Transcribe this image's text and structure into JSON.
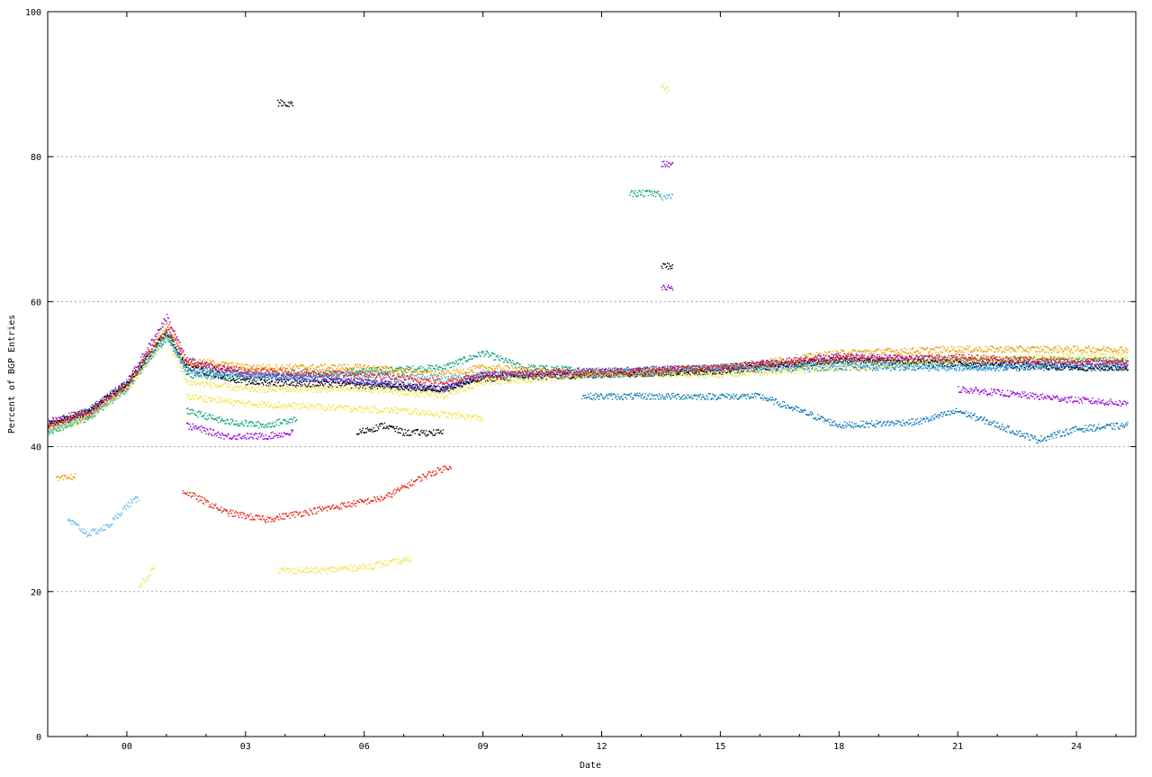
{
  "chart_data": {
    "type": "scatter",
    "title": "",
    "xlabel": "Date",
    "ylabel": "Percent of BGP Entries",
    "xlim": [
      -2.0,
      25.5
    ],
    "ylim": [
      0,
      100
    ],
    "x_ticks": [
      {
        "value": 0,
        "label": "00"
      },
      {
        "value": 3,
        "label": "03"
      },
      {
        "value": 6,
        "label": "06"
      },
      {
        "value": 9,
        "label": "09"
      },
      {
        "value": 12,
        "label": "12"
      },
      {
        "value": 15,
        "label": "15"
      },
      {
        "value": 18,
        "label": "18"
      },
      {
        "value": 21,
        "label": "21"
      },
      {
        "value": 24,
        "label": "24"
      }
    ],
    "y_ticks": [
      0,
      20,
      40,
      60,
      80,
      100
    ],
    "y_grid": true,
    "x_grid": false,
    "series": [
      {
        "color": "#009e73",
        "points": [
          [
            -2,
            42
          ],
          [
            -1,
            44
          ],
          [
            0,
            48
          ],
          [
            1,
            56
          ],
          [
            1.5,
            50
          ],
          [
            3,
            49.5
          ],
          [
            4.5,
            50
          ],
          [
            6,
            50.5
          ],
          [
            8,
            51
          ],
          [
            9,
            53
          ],
          [
            10,
            51
          ],
          [
            12,
            50.5
          ],
          [
            15,
            51
          ],
          [
            18,
            52
          ],
          [
            21,
            52
          ],
          [
            24,
            52
          ],
          [
            25.3,
            52
          ]
        ]
      },
      {
        "color": "#0072b2",
        "points": [
          [
            -2,
            43
          ],
          [
            -1,
            45
          ],
          [
            0,
            49
          ],
          [
            1,
            55
          ],
          [
            1.5,
            51
          ],
          [
            3,
            50
          ],
          [
            6,
            49
          ],
          [
            8,
            48
          ],
          [
            9,
            50
          ],
          [
            12,
            50
          ],
          [
            15,
            50.5
          ],
          [
            18,
            51
          ],
          [
            21,
            51
          ],
          [
            24,
            51
          ],
          [
            25.3,
            51
          ]
        ]
      },
      {
        "color": "#e69f00",
        "points": [
          [
            -2,
            42.5
          ],
          [
            -1,
            44.5
          ],
          [
            0,
            48.5
          ],
          [
            1,
            57
          ],
          [
            1.5,
            52
          ],
          [
            3,
            51
          ],
          [
            6,
            51
          ],
          [
            8,
            50
          ],
          [
            9,
            51
          ],
          [
            12,
            50
          ],
          [
            15,
            51
          ],
          [
            18,
            53
          ],
          [
            21,
            53.5
          ],
          [
            24,
            53.5
          ],
          [
            25.3,
            53.5
          ]
        ]
      },
      {
        "color": "#9400d3",
        "points": [
          [
            -2,
            43.5
          ],
          [
            -1,
            45
          ],
          [
            0,
            49
          ],
          [
            1,
            58
          ],
          [
            1.5,
            52
          ],
          [
            3,
            50
          ],
          [
            6,
            49
          ],
          [
            8,
            48
          ],
          [
            9,
            50
          ],
          [
            12,
            50.5
          ],
          [
            15,
            51
          ],
          [
            18,
            52.5
          ],
          [
            21,
            52
          ],
          [
            24,
            51.5
          ],
          [
            25.3,
            51.5
          ]
        ]
      },
      {
        "color": "#000000",
        "points": [
          [
            -2,
            43
          ],
          [
            -1,
            44.8
          ],
          [
            0,
            48.8
          ],
          [
            1,
            56
          ],
          [
            1.5,
            51
          ],
          [
            3,
            49
          ],
          [
            6,
            48.5
          ],
          [
            8,
            48
          ],
          [
            9,
            49.5
          ],
          [
            12,
            50
          ],
          [
            15,
            50.5
          ],
          [
            18,
            52
          ],
          [
            21,
            51.5
          ],
          [
            24,
            51
          ],
          [
            25.3,
            51
          ]
        ]
      },
      {
        "color": "#f0e442",
        "points": [
          [
            -2,
            42
          ],
          [
            -1,
            44
          ],
          [
            0,
            48
          ],
          [
            1,
            55
          ],
          [
            1.5,
            49
          ],
          [
            3,
            48
          ],
          [
            6,
            48
          ],
          [
            8,
            47
          ],
          [
            9,
            49
          ],
          [
            12,
            50
          ],
          [
            15,
            50
          ],
          [
            18,
            51
          ],
          [
            21,
            52
          ],
          [
            24,
            52.5
          ],
          [
            25.3,
            52.5
          ]
        ]
      },
      {
        "color": "#56b4e9",
        "points": [
          [
            -2,
            42.2
          ],
          [
            -1,
            44.2
          ],
          [
            0,
            48.2
          ],
          [
            1,
            55.5
          ],
          [
            1.5,
            50.5
          ],
          [
            3,
            50
          ],
          [
            6,
            50
          ],
          [
            8,
            49.5
          ],
          [
            9,
            50
          ],
          [
            12,
            50
          ],
          [
            15,
            51
          ],
          [
            18,
            51.5
          ],
          [
            21,
            51
          ],
          [
            24,
            51.5
          ],
          [
            25.3,
            51.5
          ]
        ]
      },
      {
        "color": "#e51e10",
        "points": [
          [
            -2,
            43.2
          ],
          [
            -1,
            44.6
          ],
          [
            0,
            48.6
          ],
          [
            1,
            56.5
          ],
          [
            1.5,
            51.5
          ],
          [
            3,
            50.5
          ],
          [
            6,
            50
          ],
          [
            8,
            49
          ],
          [
            9,
            50
          ],
          [
            12,
            50.2
          ],
          [
            15,
            51
          ],
          [
            18,
            52.2
          ],
          [
            21,
            52.4
          ],
          [
            24,
            51.8
          ],
          [
            25.3,
            51.8
          ]
        ]
      },
      {
        "color": "#0072b2",
        "points": [
          [
            11.5,
            47
          ],
          [
            13,
            47
          ],
          [
            16,
            47
          ],
          [
            17,
            45
          ],
          [
            18,
            43
          ],
          [
            20,
            43.5
          ],
          [
            21,
            45
          ],
          [
            23,
            41
          ],
          [
            24,
            42.5
          ],
          [
            25.3,
            43
          ]
        ]
      },
      {
        "color": "#9400d3",
        "points": [
          [
            21,
            48
          ],
          [
            23,
            47
          ],
          [
            24,
            46.5
          ],
          [
            25.3,
            46
          ]
        ]
      },
      {
        "color": "#e51e10",
        "points": [
          [
            1.4,
            34
          ],
          [
            2.5,
            31
          ],
          [
            3.5,
            30
          ],
          [
            4.5,
            31
          ],
          [
            5.5,
            32
          ],
          [
            6.5,
            33
          ],
          [
            7.5,
            36
          ],
          [
            8.2,
            37.5
          ]
        ]
      },
      {
        "color": "#f0e442",
        "points": [
          [
            3.8,
            23
          ],
          [
            5,
            23
          ],
          [
            6,
            23.5
          ],
          [
            7.2,
            24.5
          ]
        ]
      },
      {
        "color": "#000000",
        "points": [
          [
            5.8,
            42
          ],
          [
            6.5,
            43
          ],
          [
            7,
            42
          ],
          [
            8,
            42
          ]
        ]
      },
      {
        "color": "#f0e442",
        "points": [
          [
            1.5,
            47
          ],
          [
            3,
            46
          ],
          [
            5,
            45.5
          ],
          [
            7,
            45
          ],
          [
            8,
            44.5
          ],
          [
            9,
            44
          ]
        ]
      },
      {
        "color": "#009e73",
        "points": [
          [
            1.5,
            45
          ],
          [
            2.5,
            43.5
          ],
          [
            3.5,
            43
          ],
          [
            4.3,
            44
          ]
        ]
      },
      {
        "color": "#9400d3",
        "points": [
          [
            1.5,
            43
          ],
          [
            2.5,
            41.5
          ],
          [
            3.5,
            41.5
          ],
          [
            4.2,
            42
          ]
        ]
      },
      {
        "color": "#56b4e9",
        "points": [
          [
            -1.5,
            30
          ],
          [
            -1,
            28
          ],
          [
            -0.5,
            29
          ],
          [
            0,
            32
          ],
          [
            0.3,
            33
          ]
        ]
      },
      {
        "color": "#f0e442",
        "points": [
          [
            0.3,
            21
          ],
          [
            0.5,
            22
          ],
          [
            0.7,
            23.5
          ]
        ]
      },
      {
        "color": "#e69f00",
        "points": [
          [
            -1.8,
            35.5
          ],
          [
            -1.3,
            36
          ]
        ]
      },
      {
        "color": "#009e73",
        "points": [
          [
            12.7,
            75
          ],
          [
            13.2,
            75
          ],
          [
            13.5,
            75
          ]
        ]
      },
      {
        "color": "#56b4e9",
        "points": [
          [
            13.5,
            74.5
          ],
          [
            13.8,
            74.5
          ]
        ]
      },
      {
        "color": "#f0e442",
        "points": [
          [
            13.5,
            90
          ],
          [
            13.7,
            89
          ]
        ]
      },
      {
        "color": "#000000",
        "points": [
          [
            13.5,
            65
          ],
          [
            13.8,
            65
          ]
        ]
      },
      {
        "color": "#9400d3",
        "points": [
          [
            13.5,
            62
          ],
          [
            13.8,
            62
          ]
        ]
      },
      {
        "color": "#9400d3",
        "points": [
          [
            13.5,
            79
          ],
          [
            13.8,
            79
          ]
        ]
      },
      {
        "color": "#000000",
        "points": [
          [
            3.8,
            87.5
          ],
          [
            4.2,
            87.3
          ]
        ]
      }
    ]
  }
}
